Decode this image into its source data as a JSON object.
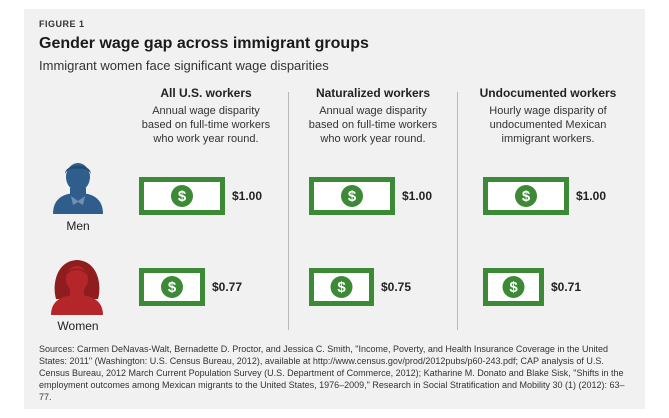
{
  "figure_label": "FIGURE 1",
  "title": "Gender wage gap across immigrant groups",
  "subtitle": "Immigrant women face significant wage disparities",
  "colors": {
    "bill_green": "#3c8a35",
    "men_blue": "#2f5d8c",
    "women_red": "#b5262a"
  },
  "rows": [
    {
      "label": "Men",
      "icon": "man-icon"
    },
    {
      "label": "Women",
      "icon": "woman-icon"
    }
  ],
  "columns": [
    {
      "title": "All U.S. workers",
      "desc": [
        "Annual wage disparity",
        "based on full-time workers",
        "who work year round."
      ],
      "men": "$1.00",
      "women": "$0.77"
    },
    {
      "title": "Naturalized workers",
      "desc": [
        "Annual wage disparity",
        "based on full-time workers",
        "who work year round."
      ],
      "men": "$1.00",
      "women": "$0.75"
    },
    {
      "title": "Undocumented workers",
      "desc": [
        "Hourly wage disparity of",
        "undocumented Mexican",
        "immigrant workers."
      ],
      "men": "$1.00",
      "women": "$0.71"
    }
  ],
  "sources": "Sources: Carmen DeNavas-Walt, Bernadette D. Proctor, and Jessica C. Smith, \"Income, Poverty, and Health Insurance Coverage in the United States: 2011\" (Washington: U.S. Census Bureau, 2012), available at http://www.census.gov/prod/2012pubs/p60-243.pdf; CAP analysis of U.S. Census Bureau, 2012 March Current Population Survey (U.S. Department of Commerce, 2012); Katharine M. Donato and Blake Sisk, \"Shifts in the employment outcomes among Mexican migrants to the United States, 1976–2009,\" Research in Social Stratification and Mobility 30 (1) (2012): 63–77.",
  "chart_data": {
    "type": "bar",
    "categories": [
      "All U.S. workers",
      "Naturalized workers",
      "Undocumented workers"
    ],
    "series": [
      {
        "name": "Men",
        "values": [
          1.0,
          1.0,
          1.0
        ]
      },
      {
        "name": "Women",
        "values": [
          0.77,
          0.75,
          0.71
        ]
      }
    ]
  }
}
